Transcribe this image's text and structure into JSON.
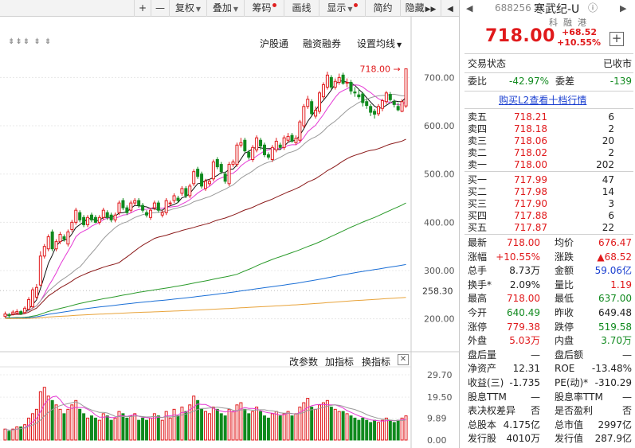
{
  "toolbar": {
    "plus": "+",
    "minus": "—",
    "fuquan": "复权",
    "diejia": "叠加",
    "chouma": "筹码",
    "huaxian": "画线",
    "xianshi": "显示",
    "jianyue": "简约",
    "yincang": "隐藏",
    "expand": "▶▶",
    "prev": "◀"
  },
  "chart_menu": {
    "hgt": "沪股通",
    "rzrq": "融资融券",
    "settings": "设置均线",
    "markers": "⇟⇟⇟   ⇟   ⇟"
  },
  "indicator_menu": {
    "params": "改参数",
    "add": "加指标",
    "switch": "换指标",
    "close": "✕"
  },
  "colors": {
    "up": "#e0191b",
    "down": "#118a1f",
    "ma5": "#111111",
    "ma10": "#e53ad5",
    "ma20": "#9a9a9a",
    "ma30": "#8b1a1a",
    "ma60": "#2a9a2a",
    "ma120": "#1b6fd6",
    "ma250": "#e8a33a"
  },
  "chart_data": [
    {
      "type": "candlestick",
      "price_labels": [
        "700.00",
        "600.00",
        "500.00",
        "400.00",
        "300.00",
        "258.30",
        "200.00"
      ],
      "yticks": [
        700,
        600,
        500,
        400,
        300,
        200
      ],
      "current_marker": "258.30",
      "high_label": "718.00",
      "ylim": [
        150,
        760
      ],
      "grid": true,
      "x": [
        1,
        2,
        3,
        4,
        5,
        6,
        7,
        8,
        9,
        10,
        11,
        12,
        13,
        14,
        15,
        16,
        17,
        18,
        19,
        20,
        21,
        22,
        23,
        24,
        25,
        26,
        27,
        28,
        29,
        30,
        31,
        32,
        33,
        34,
        35,
        36,
        37,
        38,
        39,
        40,
        41,
        42,
        43,
        44,
        45,
        46,
        47,
        48,
        49,
        50,
        51,
        52,
        53,
        54,
        55,
        56,
        57,
        58,
        59,
        60,
        61,
        62,
        63,
        64,
        65,
        66,
        67,
        68,
        69,
        70,
        71,
        72,
        73,
        74,
        75,
        76,
        77,
        78,
        79,
        80,
        81,
        82,
        83,
        84,
        85,
        86,
        87,
        88,
        89,
        90,
        91,
        92,
        93,
        94,
        95,
        96,
        97,
        98,
        99,
        100,
        101,
        102,
        103
      ],
      "open": [
        205,
        208,
        210,
        212,
        215,
        213,
        220,
        225,
        245,
        270,
        330,
        345,
        380,
        345,
        360,
        370,
        355,
        385,
        400,
        420,
        410,
        395,
        415,
        410,
        400,
        410,
        420,
        415,
        405,
        420,
        445,
        430,
        425,
        440,
        445,
        435,
        420,
        410,
        430,
        440,
        415,
        420,
        440,
        445,
        450,
        460,
        470,
        455,
        480,
        510,
        500,
        470,
        480,
        490,
        530,
        520,
        500,
        480,
        520,
        520,
        560,
        570,
        545,
        530,
        550,
        570,
        560,
        540,
        530,
        550,
        560,
        555,
        570,
        580,
        565,
        570,
        600,
        640,
        650,
        620,
        630,
        660,
        680,
        700,
        680,
        690,
        705,
        690,
        690,
        670,
        664,
        666,
        650,
        640,
        630,
        625,
        636,
        650,
        665,
        650,
        640,
        630,
        641
      ],
      "close": [
        210,
        207,
        214,
        215,
        210,
        222,
        240,
        260,
        265,
        330,
        350,
        370,
        345,
        360,
        375,
        365,
        380,
        400,
        425,
        405,
        395,
        410,
        405,
        400,
        410,
        425,
        410,
        405,
        415,
        440,
        430,
        420,
        440,
        445,
        435,
        425,
        415,
        425,
        440,
        425,
        420,
        445,
        440,
        455,
        445,
        470,
        455,
        475,
        505,
        495,
        475,
        485,
        485,
        525,
        515,
        505,
        485,
        520,
        525,
        560,
        565,
        548,
        535,
        555,
        575,
        558,
        540,
        535,
        555,
        568,
        555,
        575,
        578,
        568,
        574,
        608,
        640,
        655,
        625,
        632,
        668,
        685,
        705,
        680,
        692,
        700,
        688,
        690,
        672,
        668,
        660,
        648,
        642,
        628,
        624,
        640,
        652,
        668,
        654,
        644,
        633,
        650,
        718
      ],
      "high": [
        215,
        212,
        218,
        220,
        218,
        226,
        245,
        265,
        272,
        340,
        355,
        375,
        385,
        365,
        380,
        375,
        385,
        405,
        430,
        425,
        415,
        415,
        420,
        415,
        415,
        430,
        425,
        420,
        420,
        445,
        450,
        435,
        445,
        450,
        450,
        440,
        425,
        430,
        445,
        445,
        425,
        450,
        445,
        460,
        455,
        475,
        475,
        480,
        510,
        515,
        505,
        490,
        490,
        530,
        535,
        525,
        505,
        525,
        530,
        565,
        575,
        575,
        550,
        560,
        580,
        575,
        565,
        545,
        560,
        575,
        565,
        580,
        585,
        585,
        580,
        612,
        645,
        662,
        655,
        640,
        672,
        690,
        712,
        705,
        698,
        708,
        710,
        698,
        695,
        680,
        676,
        670,
        655,
        645,
        635,
        645,
        656,
        672,
        670,
        655,
        648,
        655,
        718
      ],
      "low": [
        202,
        203,
        207,
        209,
        208,
        211,
        218,
        222,
        240,
        268,
        325,
        340,
        340,
        340,
        355,
        360,
        350,
        380,
        395,
        400,
        390,
        390,
        400,
        398,
        395,
        405,
        405,
        400,
        400,
        415,
        425,
        415,
        420,
        435,
        430,
        420,
        410,
        405,
        425,
        420,
        410,
        415,
        435,
        440,
        440,
        455,
        450,
        450,
        475,
        490,
        470,
        465,
        475,
        485,
        510,
        500,
        480,
        475,
        515,
        515,
        555,
        545,
        530,
        525,
        545,
        550,
        535,
        530,
        525,
        545,
        550,
        550,
        565,
        565,
        560,
        565,
        595,
        635,
        620,
        615,
        625,
        655,
        675,
        675,
        675,
        685,
        685,
        680,
        665,
        660,
        655,
        640,
        635,
        620,
        615,
        620,
        630,
        645,
        650,
        638,
        630,
        628,
        637
      ],
      "volume_ticks": [
        "29.70",
        "19.50",
        "9.89",
        "0.00"
      ],
      "volume": [
        5,
        4,
        5,
        6,
        6,
        7,
        10,
        12,
        14,
        22,
        24,
        20,
        18,
        16,
        14,
        12,
        14,
        16,
        18,
        14,
        12,
        10,
        11,
        10,
        9,
        12,
        11,
        9,
        10,
        13,
        12,
        10,
        11,
        12,
        9,
        10,
        9,
        10,
        12,
        11,
        9,
        13,
        10,
        14,
        11,
        15,
        13,
        16,
        20,
        18,
        14,
        13,
        12,
        15,
        14,
        12,
        11,
        14,
        13,
        16,
        17,
        14,
        12,
        13,
        15,
        13,
        11,
        10,
        12,
        13,
        11,
        12,
        13,
        11,
        12,
        15,
        17,
        19,
        15,
        14,
        16,
        17,
        18,
        15,
        14,
        13,
        13,
        12,
        11,
        10,
        9,
        10,
        9,
        8,
        9,
        8,
        9,
        10,
        9,
        8,
        9,
        10,
        11
      ]
    }
  ],
  "quote": {
    "code": "688256",
    "name": "寒武纪-U",
    "info_icon": "ⓘ",
    "tags": [
      "科",
      "融",
      "港"
    ],
    "price": "718.00",
    "change": "+68.52",
    "change_pct": "+10.55%",
    "add_btn": "+",
    "status_label": "交易状态",
    "status_value": "已收市",
    "weibi_label": "委比",
    "weibi_value": "-42.97%",
    "weicha_label": "委差",
    "weicha_value": "-139",
    "l2_link": "购买L2查看十档行情",
    "sells": [
      {
        "label": "卖五",
        "price": "718.21",
        "vol": "6"
      },
      {
        "label": "卖四",
        "price": "718.18",
        "vol": "2"
      },
      {
        "label": "卖三",
        "price": "718.06",
        "vol": "20"
      },
      {
        "label": "卖二",
        "price": "718.02",
        "vol": "2"
      },
      {
        "label": "卖一",
        "price": "718.00",
        "vol": "202"
      }
    ],
    "buys": [
      {
        "label": "买一",
        "price": "717.99",
        "vol": "47"
      },
      {
        "label": "买二",
        "price": "717.98",
        "vol": "14"
      },
      {
        "label": "买三",
        "price": "717.90",
        "vol": "3"
      },
      {
        "label": "买四",
        "price": "717.88",
        "vol": "6"
      },
      {
        "label": "买五",
        "price": "717.87",
        "vol": "22"
      }
    ],
    "stats": [
      {
        "l1": "最新",
        "v1": "718.00",
        "c1": "red",
        "l2": "均价",
        "v2": "676.47",
        "c2": "red"
      },
      {
        "l1": "涨幅",
        "v1": "+10.55%",
        "c1": "red",
        "l2": "涨跌",
        "v2": "▲68.52",
        "c2": "red"
      },
      {
        "l1": "总手",
        "v1": "8.73万",
        "c1": "",
        "l2": "金额",
        "v2": "59.06亿",
        "c2": "blue"
      },
      {
        "l1": "换手*",
        "v1": "2.09%",
        "c1": "",
        "l2": "量比",
        "v2": "1.19",
        "c2": "red"
      },
      {
        "l1": "最高",
        "v1": "718.00",
        "c1": "red",
        "l2": "最低",
        "v2": "637.00",
        "c2": "green"
      },
      {
        "l1": "今开",
        "v1": "640.49",
        "c1": "green",
        "l2": "昨收",
        "v2": "649.48",
        "c2": ""
      },
      {
        "l1": "涨停",
        "v1": "779.38",
        "c1": "red",
        "l2": "跌停",
        "v2": "519.58",
        "c2": "green"
      },
      {
        "l1": "外盘",
        "v1": "5.03万",
        "c1": "red",
        "l2": "内盘",
        "v2": "3.70万",
        "c2": "green"
      },
      {
        "l1": "盘后量",
        "v1": "—",
        "c1": "",
        "l2": "盘后额",
        "v2": "—",
        "c2": ""
      },
      {
        "l1": "净资产",
        "v1": "12.31",
        "c1": "",
        "l2": "ROE",
        "v2": "-13.48%",
        "c2": ""
      },
      {
        "l1": "收益(三)",
        "v1": "-1.735",
        "c1": "",
        "l2": "PE(动)*",
        "v2": "-310.29",
        "c2": ""
      },
      {
        "l1": "股息TTM",
        "v1": "—",
        "c1": "",
        "l2": "股息率TTM",
        "v2": "—",
        "c2": ""
      },
      {
        "l1": "表决权差异",
        "v1": "否",
        "c1": "",
        "l2": "是否盈利",
        "v2": "否",
        "c2": ""
      },
      {
        "l1": "总股本",
        "v1": "4.175亿",
        "c1": "",
        "l2": "总市值",
        "v2": "2997亿",
        "c2": ""
      },
      {
        "l1": "发行股",
        "v1": "4010万",
        "c1": "",
        "l2": "发行值",
        "v2": "287.9亿",
        "c2": ""
      }
    ]
  }
}
